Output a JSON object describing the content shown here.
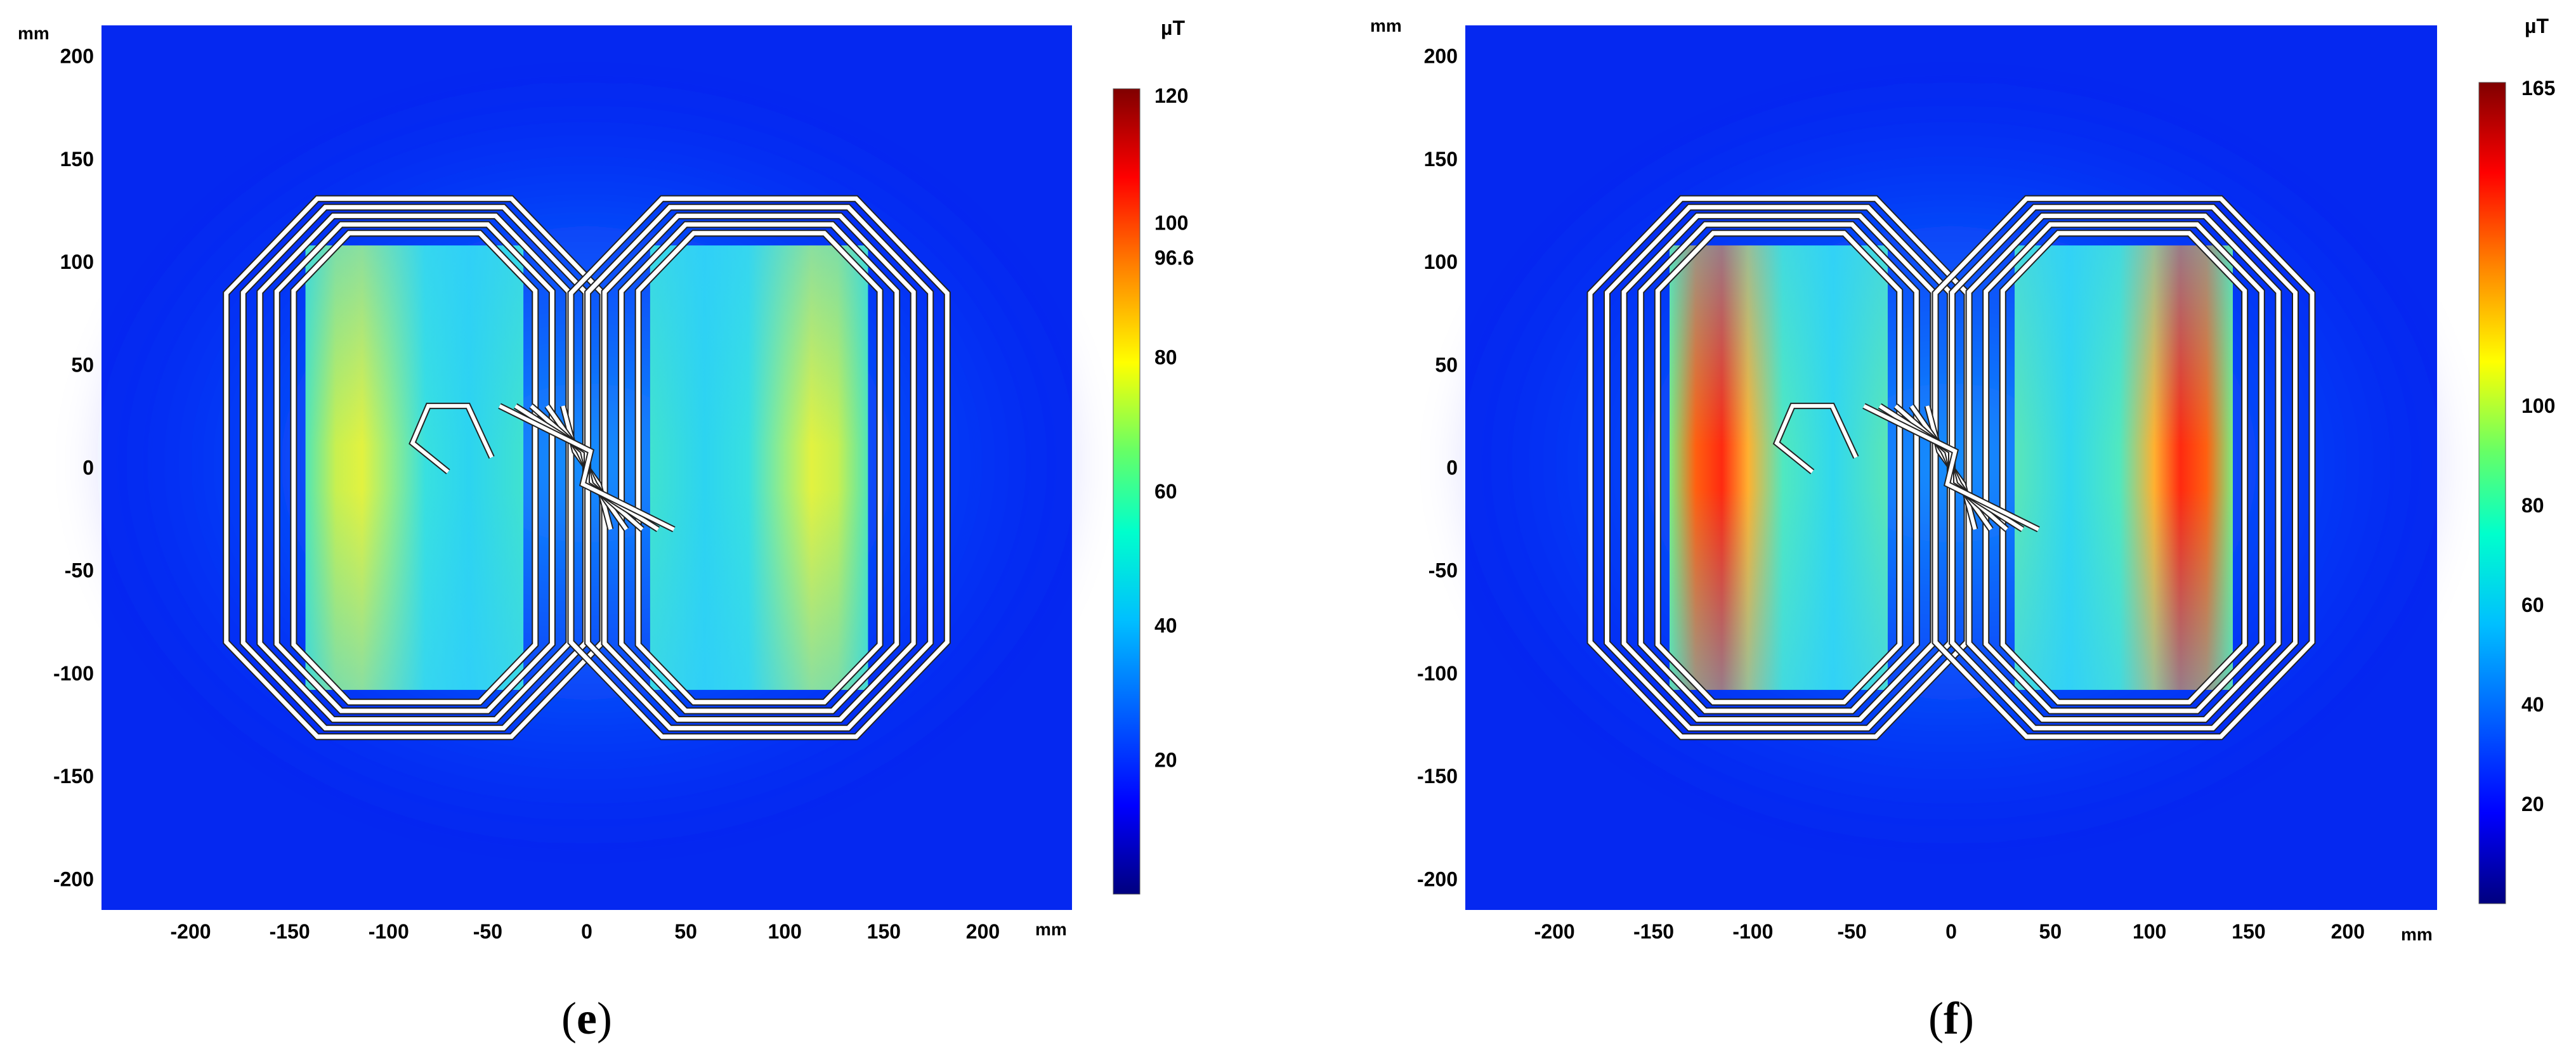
{
  "chart_data": [
    {
      "type": "heatmap",
      "caption": "e",
      "x_unit": "mm",
      "y_unit": "mm",
      "xlim": [
        -245,
        245
      ],
      "ylim": [
        -215,
        215
      ],
      "x_ticks": [
        -200,
        -150,
        -100,
        -50,
        0,
        50,
        100,
        150,
        200
      ],
      "y_ticks": [
        200,
        150,
        100,
        50,
        0,
        -50,
        -100,
        -150,
        -200
      ],
      "colorbar": {
        "unit": "µT",
        "min": 0,
        "max": 120,
        "ticks": [
          20,
          40,
          60,
          80,
          100
        ],
        "max_label": "120",
        "marker": 96.6
      },
      "peak_field": 96.6
    },
    {
      "type": "heatmap",
      "caption": "f",
      "x_unit": "mm",
      "y_unit": "mm",
      "xlim": [
        -245,
        245
      ],
      "ylim": [
        -215,
        215
      ],
      "x_ticks": [
        -200,
        -150,
        -100,
        -50,
        0,
        50,
        100,
        150,
        200
      ],
      "y_ticks": [
        200,
        150,
        100,
        50,
        0,
        -50,
        -100,
        -150,
        -200
      ],
      "colorbar": {
        "unit": "µT",
        "min": 0,
        "max": 165,
        "ticks": [
          20,
          40,
          60,
          80,
          100
        ],
        "max_label": "165",
        "marker": null
      },
      "peak_field": 165
    }
  ],
  "colors": {
    "jet": [
      "#00007f",
      "#0000ff",
      "#007fff",
      "#00ffff",
      "#7fff7f",
      "#ffff00",
      "#ff7f00",
      "#ff0000",
      "#7f0000"
    ],
    "coil": "#ffffff",
    "coil_outline": "#222222"
  }
}
